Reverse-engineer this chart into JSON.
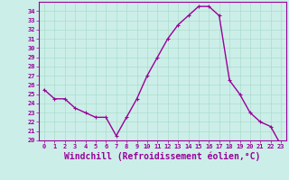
{
  "x": [
    0,
    1,
    2,
    3,
    4,
    5,
    6,
    7,
    8,
    9,
    10,
    11,
    12,
    13,
    14,
    15,
    16,
    17,
    18,
    19,
    20,
    21,
    22,
    23
  ],
  "y": [
    25.5,
    24.5,
    24.5,
    23.5,
    23.0,
    22.5,
    22.5,
    20.5,
    22.5,
    24.5,
    27.0,
    29.0,
    31.0,
    32.5,
    33.5,
    34.5,
    34.5,
    33.5,
    26.5,
    25.0,
    23.0,
    22.0,
    21.5,
    19.5
  ],
  "line_color": "#990099",
  "marker": "+",
  "marker_size": 3,
  "bg_color": "#cceee8",
  "grid_color": "#aaddcc",
  "xlabel": "Windchill (Refroidissement éolien,°C)",
  "xlabel_color": "#990099",
  "ylim": [
    20,
    35
  ],
  "xlim": [
    -0.5,
    23.5
  ],
  "yticks": [
    20,
    21,
    22,
    23,
    24,
    25,
    26,
    27,
    28,
    29,
    30,
    31,
    32,
    33,
    34
  ],
  "xticks": [
    0,
    1,
    2,
    3,
    4,
    5,
    6,
    7,
    8,
    9,
    10,
    11,
    12,
    13,
    14,
    15,
    16,
    17,
    18,
    19,
    20,
    21,
    22,
    23
  ],
  "tick_color": "#990099",
  "tick_fontsize": 5.0,
  "xlabel_fontsize": 7.0,
  "line_width": 1.0,
  "spine_color": "#990099"
}
